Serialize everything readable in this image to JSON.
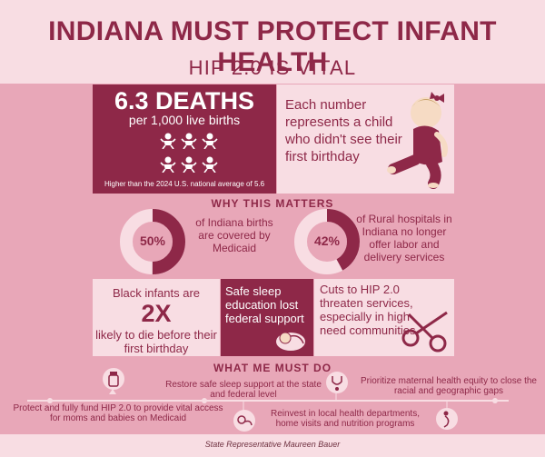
{
  "header": {
    "title": "INDIANA MUST PROTECT INFANT HEALTH",
    "subtitle": "HIP 2.0 IS VITAL"
  },
  "stat": {
    "big": "6.3 DEATHS",
    "unit": "per 1,000 live births",
    "note": "Higher than the 2024 U.S. national average of 5.6"
  },
  "represents": {
    "text": "Each number represents a child who didn't see their first birthday"
  },
  "why": {
    "heading": "WHY THIS MATTERS",
    "medicaid": {
      "value": "50%",
      "text": "of Indiana births are covered by Medicaid",
      "fraction": 0.5
    },
    "rural": {
      "value": "42%",
      "text": "of Rural hospitals in Indiana no longer offer labor and delivery services",
      "fraction": 0.42
    },
    "black": {
      "top": "Black infants are",
      "big": "2X",
      "bottom": "likely to die before their first birthday"
    },
    "sleep": {
      "text": "Safe sleep education lost federal support"
    },
    "cuts": {
      "text": "Cuts to HIP 2.0 threaten services, especially in high-need communities"
    }
  },
  "actions": {
    "heading": "WHAT ME MUST DO",
    "items": [
      "Protect and fully fund HIP 2.0 to provide vital access for moms and babies on Medicaid",
      "Restore safe sleep support at the state and federal level",
      "Reinvest in local health departments, home visits and nutrition programs",
      "Prioritize maternal health equity to close the racial and geographic gaps"
    ]
  },
  "footer": {
    "credit": "State Representative Maureen Bauer"
  },
  "colors": {
    "wine": "#8e2848",
    "pink": "#e8a7b8",
    "light": "#f8dde3"
  },
  "icons": [
    "baby-icon",
    "crawling-baby-illustration",
    "sleeping-baby-icon",
    "scissors-icon",
    "medicine-bottle-icon",
    "stethoscope-icon",
    "pregnant-mother-icon"
  ]
}
